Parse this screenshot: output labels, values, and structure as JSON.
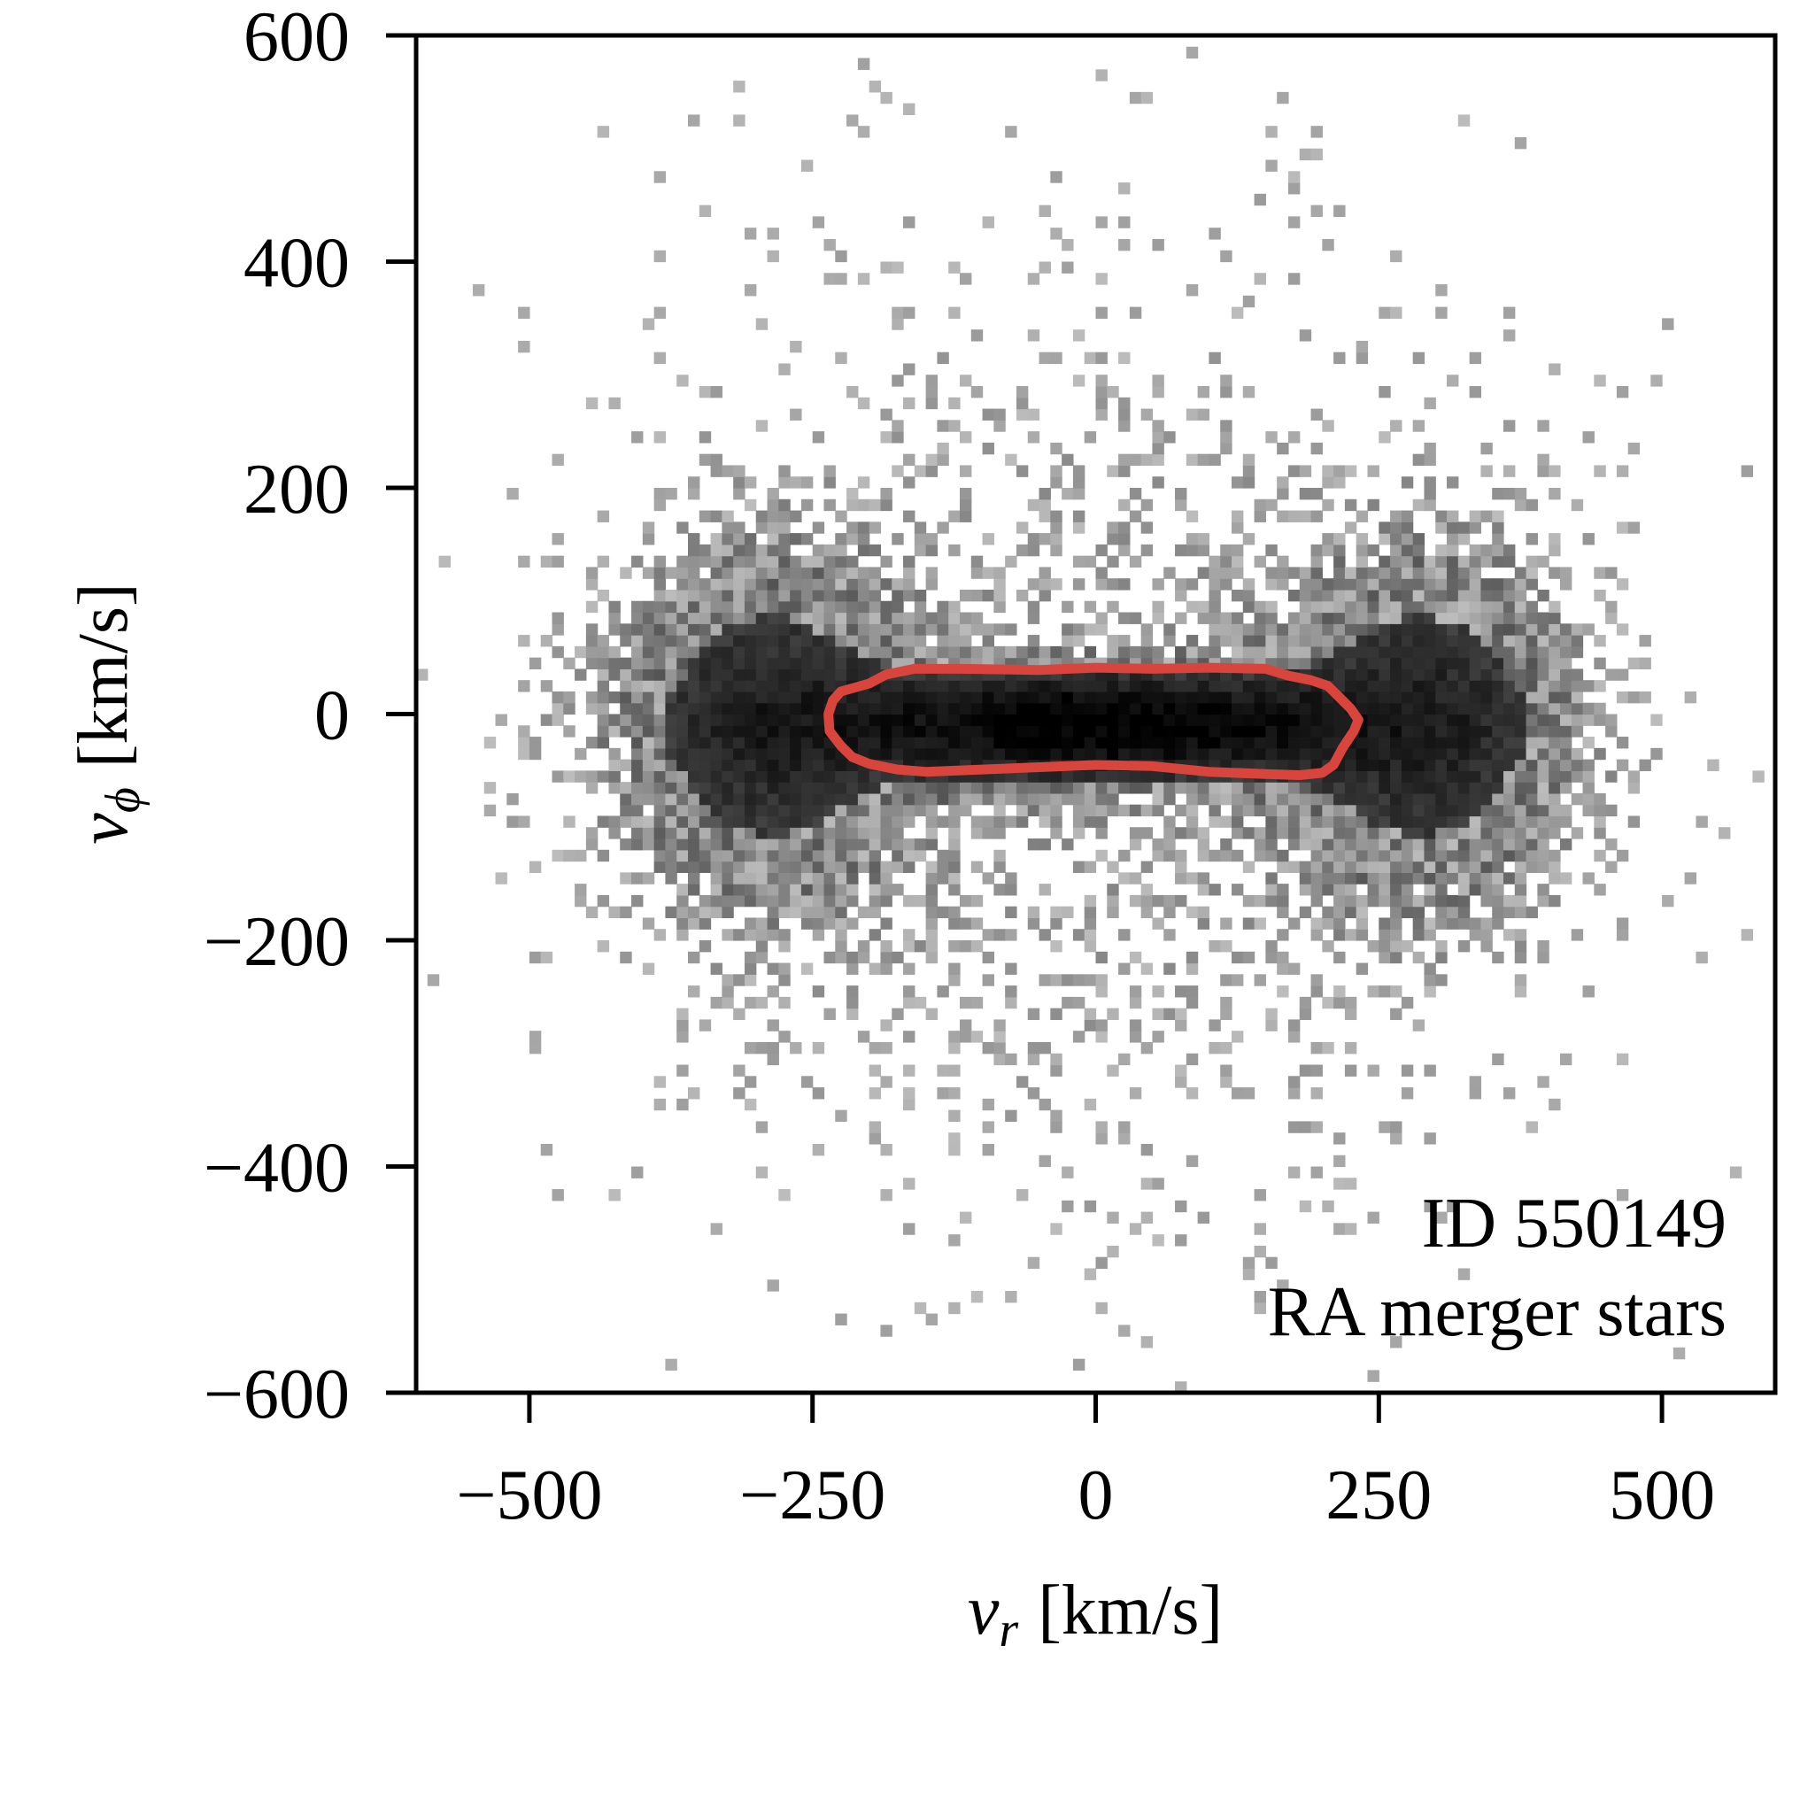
{
  "chart_data": {
    "type": "heatmap",
    "title": "",
    "xlabel": {
      "symbol": "v",
      "subscript": "r",
      "units": "[km/s]"
    },
    "ylabel": {
      "symbol": "v",
      "subscript": "ϕ",
      "units": "[km/s]"
    },
    "xlim": [
      -600,
      600
    ],
    "ylim": [
      -600,
      600
    ],
    "xticks": [
      -500,
      -250,
      0,
      250,
      500
    ],
    "xtick_labels": [
      "−500",
      "−250",
      "0",
      "250",
      "500"
    ],
    "yticks": [
      -600,
      -400,
      -200,
      0,
      200,
      400,
      600
    ],
    "ytick_labels": [
      "−600",
      "−400",
      "−200",
      "0",
      "200",
      "400",
      "600"
    ],
    "colormap": "greys",
    "annotations": [
      "ID 550149",
      "RA merger stars"
    ],
    "density_model": {
      "bin_width": 10,
      "components": [
        {
          "name": "core",
          "vr_center": 0,
          "vphi_center": -10,
          "vr_sigma": 150,
          "vphi_sigma": 28,
          "weight": 1.0
        },
        {
          "name": "lobe-left",
          "vr_center": -290,
          "vphi_center": -10,
          "vr_sigma": 80,
          "vphi_sigma": 95,
          "weight": 0.38
        },
        {
          "name": "lobe-right",
          "vr_center": 290,
          "vphi_center": -10,
          "vr_sigma": 80,
          "vphi_sigma": 95,
          "weight": 0.38
        },
        {
          "name": "halo",
          "vr_center": 0,
          "vphi_center": -20,
          "vr_sigma": 220,
          "vphi_sigma": 230,
          "weight": 0.06
        }
      ]
    },
    "contour": {
      "color": "#d9443c",
      "points": [
        [
          -225,
          20
        ],
        [
          -200,
          27
        ],
        [
          -185,
          35
        ],
        [
          -160,
          40
        ],
        [
          -120,
          40
        ],
        [
          -50,
          39
        ],
        [
          0,
          41
        ],
        [
          50,
          40
        ],
        [
          100,
          41
        ],
        [
          150,
          40
        ],
        [
          170,
          34
        ],
        [
          190,
          30
        ],
        [
          205,
          25
        ],
        [
          215,
          15
        ],
        [
          225,
          5
        ],
        [
          232,
          -5
        ],
        [
          228,
          -15
        ],
        [
          218,
          -30
        ],
        [
          210,
          -45
        ],
        [
          200,
          -52
        ],
        [
          180,
          -54
        ],
        [
          150,
          -53
        ],
        [
          100,
          -51
        ],
        [
          50,
          -46
        ],
        [
          0,
          -45
        ],
        [
          -50,
          -47
        ],
        [
          -100,
          -49
        ],
        [
          -150,
          -51
        ],
        [
          -175,
          -49
        ],
        [
          -200,
          -44
        ],
        [
          -215,
          -38
        ],
        [
          -225,
          -28
        ],
        [
          -235,
          -15
        ],
        [
          -236,
          0
        ],
        [
          -232,
          12
        ]
      ]
    }
  }
}
